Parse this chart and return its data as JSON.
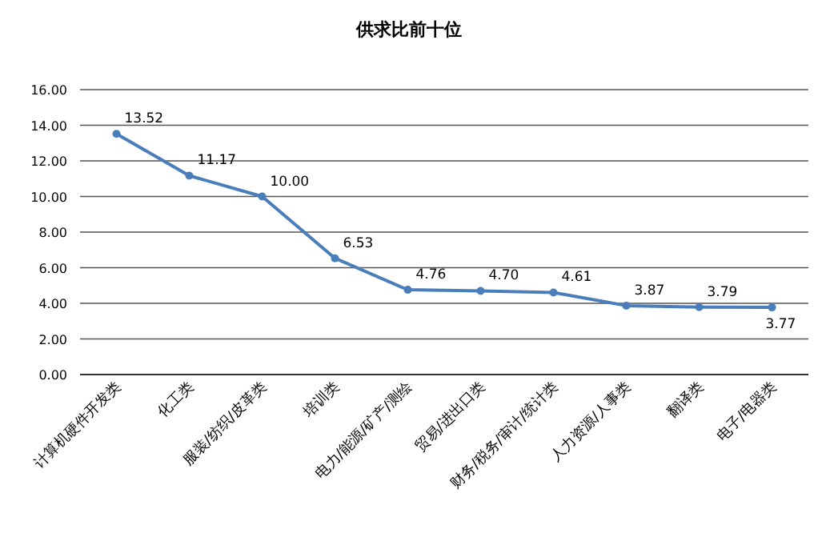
{
  "chart_data": {
    "type": "line",
    "title": "供求比前十位",
    "categories": [
      "计算机硬件开发类",
      "化工类",
      "服装/纺织/皮革类",
      "培训类",
      "电力/能源/矿产/测绘",
      "贸易/进出口类",
      "财务/税务/审计/统计类",
      "人力资源/人事类",
      "翻译类",
      "电子/电器类"
    ],
    "series": [
      {
        "color": "#4a7ebb",
        "values": [
          13.52,
          11.17,
          10.0,
          6.53,
          4.76,
          4.7,
          4.61,
          3.87,
          3.79,
          3.77
        ]
      }
    ],
    "value_labels": [
      "13.52",
      "11.17",
      "10.00",
      "6.53",
      "4.76",
      "4.70",
      "4.61",
      "3.87",
      "3.79",
      "3.77"
    ],
    "ylim": [
      0,
      16
    ],
    "yticks": [
      {
        "value": 0,
        "label": "0.00"
      },
      {
        "value": 2,
        "label": "2.00"
      },
      {
        "value": 4,
        "label": "4.00"
      },
      {
        "value": 6,
        "label": "6.00"
      },
      {
        "value": 8,
        "label": "8.00"
      },
      {
        "value": 10,
        "label": "10.00"
      },
      {
        "value": 12,
        "label": "12.00"
      },
      {
        "value": 14,
        "label": "14.00"
      },
      {
        "value": 16,
        "label": "16.00"
      }
    ],
    "grid": "y",
    "marker": "circle",
    "line_style": "solid"
  }
}
